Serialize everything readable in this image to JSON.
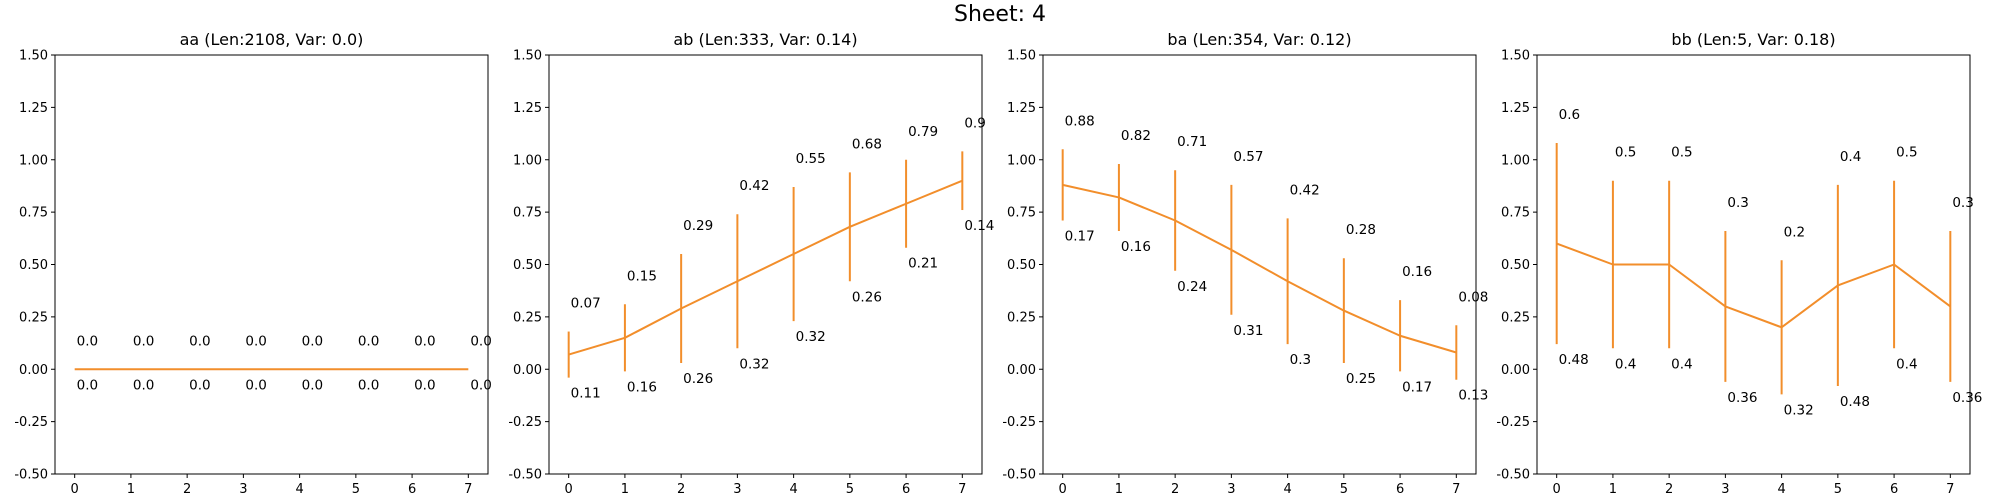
{
  "figure_title": "Sheet: 4",
  "chart_data": [
    {
      "type": "line",
      "title": "aa (Len:2108, Var: 0.0)",
      "xlabel": "",
      "ylabel": "",
      "x": [
        0,
        1,
        2,
        3,
        4,
        5,
        6,
        7
      ],
      "values": [
        0.0,
        0.0,
        0.0,
        0.0,
        0.0,
        0.0,
        0.0,
        0.0
      ],
      "upper_err": [
        0.0,
        0.0,
        0.0,
        0.0,
        0.0,
        0.0,
        0.0,
        0.0
      ],
      "lower_err": [
        0.0,
        0.0,
        0.0,
        0.0,
        0.0,
        0.0,
        0.0,
        0.0
      ],
      "value_labels": [
        "0.0",
        "0.0",
        "0.0",
        "0.0",
        "0.0",
        "0.0",
        "0.0",
        "0.0"
      ],
      "err_labels": [
        "0.0",
        "0.0",
        "0.0",
        "0.0",
        "0.0",
        "0.0",
        "0.0",
        "0.0"
      ],
      "xlim": [
        -0.35,
        7.35
      ],
      "ylim": [
        -0.5,
        1.5
      ],
      "yticks": [
        "-0.50",
        "-0.25",
        "0.00",
        "0.25",
        "0.50",
        "0.75",
        "1.00",
        "1.25",
        "1.50"
      ],
      "xticks": [
        "0",
        "1",
        "2",
        "3",
        "4",
        "5",
        "6",
        "7"
      ],
      "color": "#f28e2b",
      "grid": false
    },
    {
      "type": "line",
      "title": "ab (Len:333, Var: 0.14)",
      "xlabel": "",
      "ylabel": "",
      "x": [
        0,
        1,
        2,
        3,
        4,
        5,
        6,
        7
      ],
      "values": [
        0.07,
        0.15,
        0.29,
        0.42,
        0.55,
        0.68,
        0.79,
        0.9
      ],
      "upper_err": [
        0.11,
        0.16,
        0.26,
        0.32,
        0.32,
        0.26,
        0.21,
        0.14
      ],
      "lower_err": [
        0.11,
        0.16,
        0.26,
        0.32,
        0.32,
        0.26,
        0.21,
        0.14
      ],
      "value_labels": [
        "0.07",
        "0.15",
        "0.29",
        "0.42",
        "0.55",
        "0.68",
        "0.79",
        "0.9"
      ],
      "err_labels": [
        "0.11",
        "0.16",
        "0.26",
        "0.32",
        "0.32",
        "0.26",
        "0.21",
        "0.14"
      ],
      "xlim": [
        -0.35,
        7.35
      ],
      "ylim": [
        -0.5,
        1.5
      ],
      "yticks": [
        "-0.50",
        "-0.25",
        "0.00",
        "0.25",
        "0.50",
        "0.75",
        "1.00",
        "1.25",
        "1.50"
      ],
      "xticks": [
        "0",
        "1",
        "2",
        "3",
        "4",
        "5",
        "6",
        "7"
      ],
      "color": "#f28e2b",
      "grid": false
    },
    {
      "type": "line",
      "title": "ba (Len:354, Var: 0.12)",
      "xlabel": "",
      "ylabel": "",
      "x": [
        0,
        1,
        2,
        3,
        4,
        5,
        6,
        7
      ],
      "values": [
        0.88,
        0.82,
        0.71,
        0.57,
        0.42,
        0.28,
        0.16,
        0.08
      ],
      "upper_err": [
        0.17,
        0.16,
        0.24,
        0.31,
        0.3,
        0.25,
        0.17,
        0.13
      ],
      "lower_err": [
        0.17,
        0.16,
        0.24,
        0.31,
        0.3,
        0.25,
        0.17,
        0.13
      ],
      "value_labels": [
        "0.88",
        "0.82",
        "0.71",
        "0.57",
        "0.42",
        "0.28",
        "0.16",
        "0.08"
      ],
      "err_labels": [
        "0.17",
        "0.16",
        "0.24",
        "0.31",
        "0.3",
        "0.25",
        "0.17",
        "0.13"
      ],
      "xlim": [
        -0.35,
        7.35
      ],
      "ylim": [
        -0.5,
        1.5
      ],
      "yticks": [
        "-0.50",
        "-0.25",
        "0.00",
        "0.25",
        "0.50",
        "0.75",
        "1.00",
        "1.25",
        "1.50"
      ],
      "xticks": [
        "0",
        "1",
        "2",
        "3",
        "4",
        "5",
        "6",
        "7"
      ],
      "color": "#f28e2b",
      "grid": false
    },
    {
      "type": "line",
      "title": "bb (Len:5, Var: 0.18)",
      "xlabel": "",
      "ylabel": "",
      "x": [
        0,
        1,
        2,
        3,
        4,
        5,
        6,
        7
      ],
      "values": [
        0.6,
        0.5,
        0.5,
        0.3,
        0.2,
        0.4,
        0.5,
        0.3
      ],
      "upper_err": [
        0.48,
        0.4,
        0.4,
        0.36,
        0.32,
        0.48,
        0.4,
        0.36
      ],
      "lower_err": [
        0.48,
        0.4,
        0.4,
        0.36,
        0.32,
        0.48,
        0.4,
        0.36
      ],
      "value_labels": [
        "0.6",
        "0.5",
        "0.5",
        "0.3",
        "0.2",
        "0.4",
        "0.5",
        "0.3"
      ],
      "err_labels": [
        "0.48",
        "0.4",
        "0.4",
        "0.36",
        "0.32",
        "0.48",
        "0.4",
        "0.36"
      ],
      "xlim": [
        -0.35,
        7.35
      ],
      "ylim": [
        -0.5,
        1.5
      ],
      "yticks": [
        "-0.50",
        "-0.25",
        "0.00",
        "0.25",
        "0.50",
        "0.75",
        "1.00",
        "1.25",
        "1.50"
      ],
      "xticks": [
        "0",
        "1",
        "2",
        "3",
        "4",
        "5",
        "6",
        "7"
      ],
      "color": "#f28e2b",
      "grid": false
    }
  ]
}
